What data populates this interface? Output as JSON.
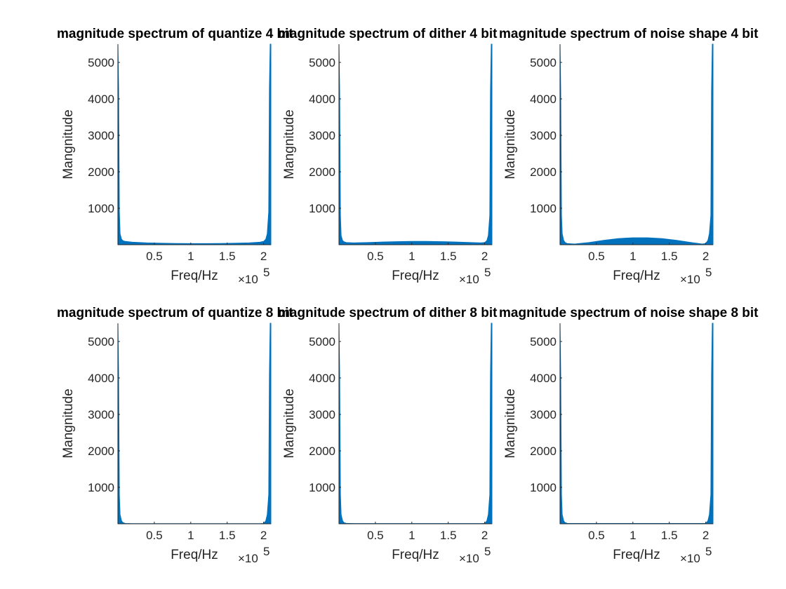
{
  "figure": {
    "background": "#ffffff"
  },
  "chart_data": [
    {
      "type": "area",
      "title": "magnitude spectrum of quantize 4 bit",
      "xlabel": "Freq/Hz",
      "ylabel": "Mangnitude",
      "x_exponent_label": "×10",
      "x_exponent_power": "5",
      "xlim": [
        0,
        210000
      ],
      "ylim": [
        0,
        5500
      ],
      "xticks": [
        50000,
        100000,
        150000,
        200000
      ],
      "xtick_labels": [
        "0.5",
        "1",
        "1.5",
        "2"
      ],
      "yticks": [
        1000,
        2000,
        3000,
        4000,
        5000
      ],
      "ytick_labels": [
        "1000",
        "2000",
        "3000",
        "4000",
        "5000"
      ],
      "color": "#0072BD",
      "series": [
        {
          "x": [
            0,
            1000,
            2000,
            3000,
            5000,
            7000,
            10000,
            20000,
            40000,
            60000,
            80000,
            100000,
            120000,
            140000,
            160000,
            180000,
            195000,
            200000,
            203000,
            205000,
            207000,
            208000,
            209000,
            210000
          ],
          "y": [
            5500,
            4300,
            900,
            300,
            150,
            110,
            90,
            70,
            50,
            40,
            35,
            30,
            30,
            35,
            40,
            50,
            70,
            90,
            150,
            300,
            900,
            4300,
            5500,
            5500
          ]
        }
      ]
    },
    {
      "type": "area",
      "title": "magnitude spectrum of dither 4 bit",
      "xlabel": "Freq/Hz",
      "ylabel": "Mangnitude",
      "x_exponent_label": "×10",
      "x_exponent_power": "5",
      "xlim": [
        0,
        210000
      ],
      "ylim": [
        0,
        5500
      ],
      "xticks": [
        50000,
        100000,
        150000,
        200000
      ],
      "xtick_labels": [
        "0.5",
        "1",
        "1.5",
        "2"
      ],
      "yticks": [
        1000,
        2000,
        3000,
        4000,
        5000
      ],
      "ytick_labels": [
        "1000",
        "2000",
        "3000",
        "4000",
        "5000"
      ],
      "color": "#0072BD",
      "series": [
        {
          "x": [
            0,
            1000,
            2000,
            3000,
            5000,
            7000,
            10000,
            20000,
            40000,
            60000,
            80000,
            100000,
            120000,
            140000,
            160000,
            180000,
            195000,
            200000,
            203000,
            205000,
            207000,
            208000,
            209000,
            210000
          ],
          "y": [
            5500,
            4200,
            800,
            250,
            110,
            80,
            60,
            50,
            60,
            75,
            85,
            90,
            90,
            85,
            75,
            60,
            50,
            60,
            110,
            250,
            800,
            4200,
            5500,
            5500
          ]
        }
      ]
    },
    {
      "type": "area",
      "title": "magnitude spectrum of noise shape 4 bit",
      "xlabel": "Freq/Hz",
      "ylabel": "Mangnitude",
      "x_exponent_label": "×10",
      "x_exponent_power": "5",
      "xlim": [
        0,
        210000
      ],
      "ylim": [
        0,
        5500
      ],
      "xticks": [
        50000,
        100000,
        150000,
        200000
      ],
      "xtick_labels": [
        "0.5",
        "1",
        "1.5",
        "2"
      ],
      "yticks": [
        1000,
        2000,
        3000,
        4000,
        5000
      ],
      "ytick_labels": [
        "1000",
        "2000",
        "3000",
        "4000",
        "5000"
      ],
      "color": "#0072BD",
      "series": [
        {
          "x": [
            0,
            1000,
            2000,
            3000,
            5000,
            7000,
            10000,
            20000,
            40000,
            60000,
            80000,
            100000,
            120000,
            140000,
            160000,
            180000,
            195000,
            200000,
            203000,
            205000,
            207000,
            208000,
            209000,
            210000
          ],
          "y": [
            5500,
            4200,
            800,
            300,
            120,
            60,
            30,
            20,
            60,
            120,
            170,
            190,
            190,
            170,
            120,
            60,
            20,
            30,
            120,
            300,
            800,
            4200,
            5500,
            5500
          ]
        }
      ]
    },
    {
      "type": "area",
      "title": "magnitude spectrum of quantize 8 bit",
      "xlabel": "Freq/Hz",
      "ylabel": "Mangnitude",
      "x_exponent_label": "×10",
      "x_exponent_power": "5",
      "xlim": [
        0,
        210000
      ],
      "ylim": [
        0,
        5500
      ],
      "xticks": [
        50000,
        100000,
        150000,
        200000
      ],
      "xtick_labels": [
        "0.5",
        "1",
        "1.5",
        "2"
      ],
      "yticks": [
        1000,
        2000,
        3000,
        4000,
        5000
      ],
      "ytick_labels": [
        "1000",
        "2000",
        "3000",
        "4000",
        "5000"
      ],
      "color": "#0072BD",
      "series": [
        {
          "x": [
            0,
            1000,
            2000,
            3000,
            5000,
            7000,
            10000,
            20000,
            40000,
            60000,
            80000,
            100000,
            120000,
            140000,
            160000,
            180000,
            195000,
            200000,
            203000,
            205000,
            207000,
            208000,
            209000,
            210000
          ],
          "y": [
            5500,
            4100,
            800,
            250,
            80,
            30,
            10,
            5,
            5,
            5,
            5,
            5,
            5,
            5,
            5,
            5,
            5,
            10,
            80,
            250,
            800,
            4100,
            5500,
            5500
          ]
        }
      ]
    },
    {
      "type": "area",
      "title": "magnitude spectrum of dither 8 bit",
      "xlabel": "Freq/Hz",
      "ylabel": "Mangnitude",
      "x_exponent_label": "×10",
      "x_exponent_power": "5",
      "xlim": [
        0,
        210000
      ],
      "ylim": [
        0,
        5500
      ],
      "xticks": [
        50000,
        100000,
        150000,
        200000
      ],
      "xtick_labels": [
        "0.5",
        "1",
        "1.5",
        "2"
      ],
      "yticks": [
        1000,
        2000,
        3000,
        4000,
        5000
      ],
      "ytick_labels": [
        "1000",
        "2000",
        "3000",
        "4000",
        "5000"
      ],
      "color": "#0072BD",
      "series": [
        {
          "x": [
            0,
            1000,
            2000,
            3000,
            5000,
            7000,
            10000,
            20000,
            40000,
            60000,
            80000,
            100000,
            120000,
            140000,
            160000,
            180000,
            195000,
            200000,
            203000,
            205000,
            207000,
            208000,
            209000,
            210000
          ],
          "y": [
            5500,
            4100,
            800,
            250,
            80,
            30,
            12,
            8,
            8,
            8,
            8,
            8,
            8,
            8,
            8,
            8,
            8,
            12,
            80,
            250,
            800,
            4100,
            5500,
            5500
          ]
        }
      ]
    },
    {
      "type": "area",
      "title": "magnitude spectrum of noise shape 8 bit",
      "xlabel": "Freq/Hz",
      "ylabel": "Mangnitude",
      "x_exponent_label": "×10",
      "x_exponent_power": "5",
      "xlim": [
        0,
        210000
      ],
      "ylim": [
        0,
        5500
      ],
      "xticks": [
        50000,
        100000,
        150000,
        200000
      ],
      "xtick_labels": [
        "0.5",
        "1",
        "1.5",
        "2"
      ],
      "yticks": [
        1000,
        2000,
        3000,
        4000,
        5000
      ],
      "ytick_labels": [
        "1000",
        "2000",
        "3000",
        "4000",
        "5000"
      ],
      "color": "#0072BD",
      "series": [
        {
          "x": [
            0,
            1000,
            2000,
            3000,
            5000,
            7000,
            10000,
            20000,
            40000,
            60000,
            80000,
            100000,
            120000,
            140000,
            160000,
            180000,
            195000,
            200000,
            203000,
            205000,
            207000,
            208000,
            209000,
            210000
          ],
          "y": [
            5500,
            4100,
            800,
            250,
            80,
            30,
            12,
            10,
            10,
            10,
            10,
            10,
            10,
            10,
            10,
            10,
            10,
            12,
            80,
            250,
            800,
            4100,
            5500,
            5500
          ]
        }
      ]
    }
  ]
}
